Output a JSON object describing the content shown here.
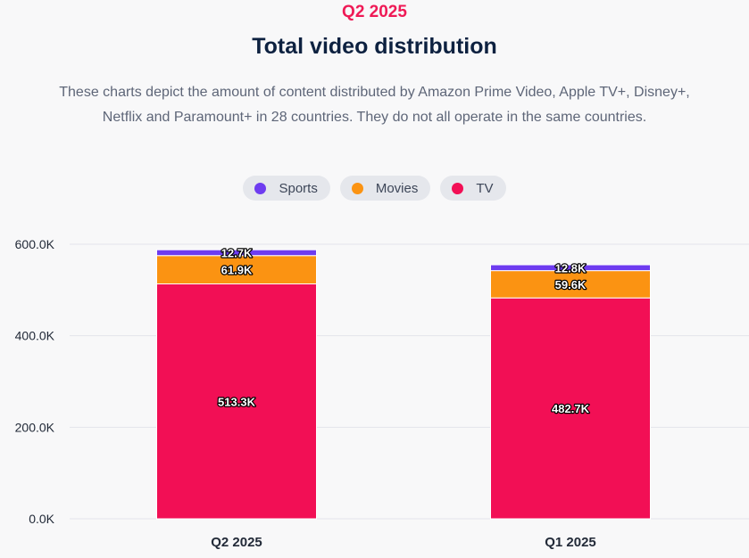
{
  "header": {
    "eyebrow": "Q2 2025",
    "title": "Total video distribution",
    "description_line1": "These charts depict the amount of content distributed by Amazon Prime Video, Apple TV+, Disney+,",
    "description_line2": "Netflix and Paramount+ in 28 countries. They do not all operate in the same countries."
  },
  "legend": [
    {
      "label": "Sports",
      "color": "#6e3cf0"
    },
    {
      "label": "Movies",
      "color": "#fb9312"
    },
    {
      "label": "TV",
      "color": "#f20f55"
    }
  ],
  "chart_data": {
    "type": "bar",
    "stacked": true,
    "title": "Total video distribution",
    "categories": [
      "Q2 2025",
      "Q1 2025"
    ],
    "series": [
      {
        "name": "TV",
        "values": [
          513.3,
          482.7
        ],
        "labels": [
          "513.3K",
          "482.7K"
        ],
        "color": "#f20f55"
      },
      {
        "name": "Movies",
        "values": [
          61.9,
          59.6
        ],
        "labels": [
          "61.9K",
          "59.6K"
        ],
        "color": "#fb9312"
      },
      {
        "name": "Sports",
        "values": [
          12.7,
          12.8
        ],
        "labels": [
          "12.7K",
          "12.8K"
        ],
        "color": "#6e3cf0"
      }
    ],
    "unit": "K",
    "ylim": [
      0,
      600
    ],
    "yticks": [
      0,
      200,
      400,
      600
    ],
    "ytick_labels": [
      "0.0K",
      "200.0K",
      "400.0K",
      "600.0K"
    ],
    "grid": true,
    "legend_position": "top-center"
  }
}
